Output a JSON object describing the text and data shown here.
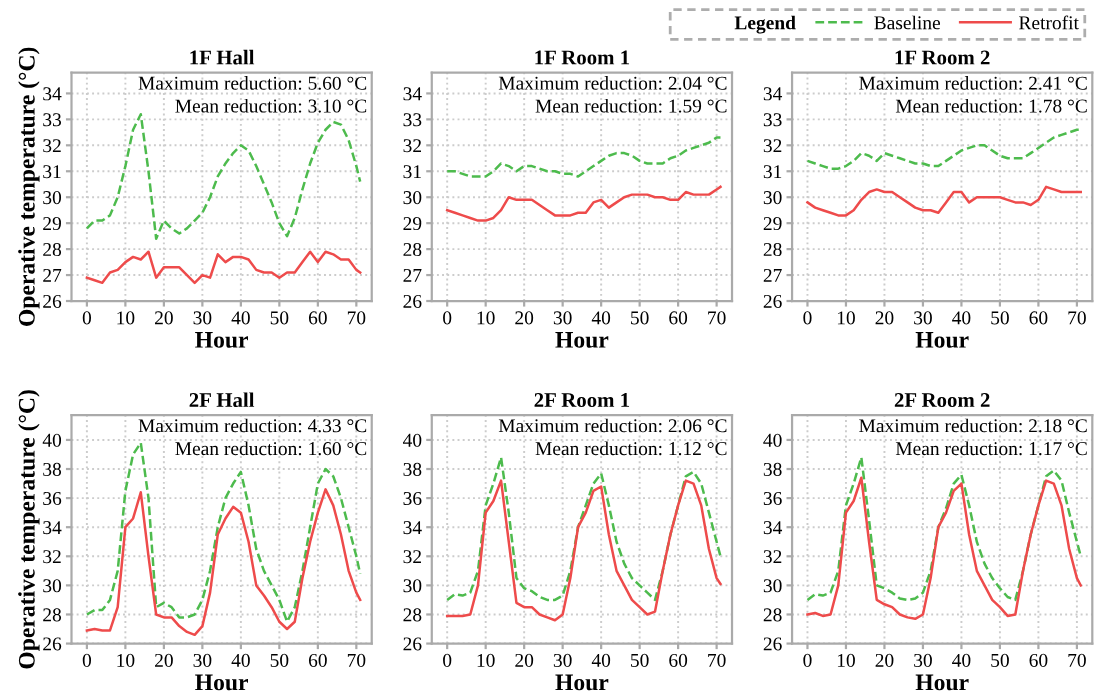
{
  "chart_data": [
    {
      "type": "line",
      "title": "1F Hall",
      "xlabel": "Hour",
      "ylabel": "Operative temperature (°C)",
      "annotations": [
        "Maximum reduction: 5.60 °C",
        "Mean reduction: 3.10 °C"
      ],
      "x": [
        0,
        2,
        4,
        6,
        8,
        10,
        12,
        14,
        16,
        18,
        20,
        22,
        24,
        26,
        28,
        30,
        32,
        34,
        36,
        38,
        40,
        42,
        44,
        46,
        48,
        50,
        52,
        54,
        56,
        58,
        60,
        62,
        64,
        66,
        68,
        70,
        71
      ],
      "xlim": [
        -4,
        74
      ],
      "xticks": [
        0,
        10,
        20,
        30,
        40,
        50,
        60,
        70
      ],
      "ylim": [
        26,
        34.8
      ],
      "yticks": [
        26,
        27,
        28,
        29,
        30,
        31,
        32,
        33,
        34
      ],
      "grid": true,
      "legend": "top right",
      "legend_title": "Legend",
      "series": [
        {
          "name": "Baseline",
          "color": "#4dbb4d",
          "line_style": "dashed",
          "values": [
            28.8,
            29.1,
            29.1,
            29.3,
            30.0,
            31.2,
            32.6,
            33.2,
            31.0,
            28.4,
            29.1,
            28.8,
            28.6,
            28.8,
            29.1,
            29.4,
            30.0,
            30.8,
            31.3,
            31.7,
            32.0,
            31.8,
            31.2,
            30.5,
            29.8,
            29.0,
            28.5,
            29.2,
            30.3,
            31.3,
            32.1,
            32.6,
            32.9,
            32.8,
            32.2,
            31.2,
            30.6
          ]
        },
        {
          "name": "Retrofit",
          "color": "#ee4b4b",
          "line_style": "solid",
          "values": [
            26.9,
            26.8,
            26.7,
            27.1,
            27.2,
            27.5,
            27.7,
            27.6,
            27.9,
            26.9,
            27.3,
            27.3,
            27.3,
            27.0,
            26.7,
            27.0,
            26.9,
            27.8,
            27.5,
            27.7,
            27.7,
            27.6,
            27.2,
            27.1,
            27.1,
            26.9,
            27.1,
            27.1,
            27.5,
            27.9,
            27.5,
            27.9,
            27.8,
            27.6,
            27.6,
            27.2,
            27.1
          ]
        }
      ]
    },
    {
      "type": "line",
      "title": "1F Room 1",
      "xlabel": "Hour",
      "annotations": [
        "Maximum reduction: 2.04 °C",
        "Mean reduction: 1.59 °C"
      ],
      "x": [
        0,
        2,
        4,
        6,
        8,
        10,
        12,
        14,
        16,
        18,
        20,
        22,
        24,
        26,
        28,
        30,
        32,
        34,
        36,
        38,
        40,
        42,
        44,
        46,
        48,
        50,
        52,
        54,
        56,
        58,
        60,
        62,
        64,
        66,
        68,
        70,
        71
      ],
      "xlim": [
        -4,
        74
      ],
      "xticks": [
        0,
        10,
        20,
        30,
        40,
        50,
        60,
        70
      ],
      "ylim": [
        26,
        34.8
      ],
      "yticks": [
        26,
        27,
        28,
        29,
        30,
        31,
        32,
        33,
        34
      ],
      "grid": true,
      "legend": false,
      "series": [
        {
          "name": "Baseline",
          "color": "#4dbb4d",
          "line_style": "dashed",
          "values": [
            31.0,
            31.0,
            30.9,
            30.8,
            30.8,
            30.8,
            31.0,
            31.3,
            31.2,
            31.0,
            31.2,
            31.2,
            31.1,
            31.0,
            31.0,
            30.9,
            30.9,
            30.8,
            31.0,
            31.2,
            31.4,
            31.6,
            31.7,
            31.7,
            31.6,
            31.4,
            31.3,
            31.3,
            31.3,
            31.5,
            31.6,
            31.8,
            31.9,
            32.0,
            32.1,
            32.3,
            32.3
          ]
        },
        {
          "name": "Retrofit",
          "color": "#ee4b4b",
          "line_style": "solid",
          "values": [
            29.5,
            29.4,
            29.3,
            29.2,
            29.1,
            29.1,
            29.2,
            29.5,
            30.0,
            29.9,
            29.9,
            29.9,
            29.7,
            29.5,
            29.3,
            29.3,
            29.3,
            29.4,
            29.4,
            29.8,
            29.9,
            29.6,
            29.8,
            30.0,
            30.1,
            30.1,
            30.1,
            30.0,
            30.0,
            29.9,
            29.9,
            30.2,
            30.1,
            30.1,
            30.1,
            30.3,
            30.4
          ]
        }
      ]
    },
    {
      "type": "line",
      "title": "1F Room 2",
      "xlabel": "Hour",
      "annotations": [
        "Maximum reduction: 2.41 °C",
        "Mean reduction: 1.78 °C"
      ],
      "x": [
        0,
        2,
        4,
        6,
        8,
        10,
        12,
        14,
        16,
        18,
        20,
        22,
        24,
        26,
        28,
        30,
        32,
        34,
        36,
        38,
        40,
        42,
        44,
        46,
        48,
        50,
        52,
        54,
        56,
        58,
        60,
        62,
        64,
        66,
        68,
        70,
        71
      ],
      "xlim": [
        -4,
        74
      ],
      "xticks": [
        0,
        10,
        20,
        30,
        40,
        50,
        60,
        70
      ],
      "ylim": [
        26,
        34.8
      ],
      "yticks": [
        26,
        27,
        28,
        29,
        30,
        31,
        32,
        33,
        34
      ],
      "grid": true,
      "legend": false,
      "series": [
        {
          "name": "Baseline",
          "color": "#4dbb4d",
          "line_style": "dashed",
          "values": [
            31.4,
            31.3,
            31.2,
            31.1,
            31.1,
            31.2,
            31.4,
            31.7,
            31.6,
            31.4,
            31.7,
            31.6,
            31.5,
            31.4,
            31.3,
            31.3,
            31.2,
            31.2,
            31.4,
            31.6,
            31.8,
            31.9,
            32.0,
            32.0,
            31.8,
            31.6,
            31.5,
            31.5,
            31.5,
            31.7,
            31.9,
            32.1,
            32.3,
            32.4,
            32.5,
            32.6,
            32.6
          ]
        },
        {
          "name": "Retrofit",
          "color": "#ee4b4b",
          "line_style": "solid",
          "values": [
            29.8,
            29.6,
            29.5,
            29.4,
            29.3,
            29.3,
            29.5,
            29.9,
            30.2,
            30.3,
            30.2,
            30.2,
            30.0,
            29.8,
            29.6,
            29.5,
            29.5,
            29.4,
            29.8,
            30.2,
            30.2,
            29.8,
            30.0,
            30.0,
            30.0,
            30.0,
            29.9,
            29.8,
            29.8,
            29.7,
            29.9,
            30.4,
            30.3,
            30.2,
            30.2,
            30.2,
            30.2
          ]
        }
      ]
    },
    {
      "type": "line",
      "title": "2F Hall",
      "xlabel": "Hour",
      "ylabel": "Operative temperature (°C)",
      "annotations": [
        "Maximum reduction: 4.33 °C",
        "Mean reduction: 1.60 °C"
      ],
      "x": [
        0,
        2,
        4,
        6,
        8,
        10,
        12,
        14,
        16,
        18,
        20,
        22,
        24,
        26,
        28,
        30,
        32,
        34,
        36,
        38,
        40,
        42,
        44,
        46,
        48,
        50,
        52,
        54,
        56,
        58,
        60,
        62,
        64,
        66,
        68,
        70,
        71
      ],
      "xlim": [
        -4,
        74
      ],
      "xticks": [
        0,
        10,
        20,
        30,
        40,
        50,
        60,
        70
      ],
      "ylim": [
        26,
        41.7
      ],
      "yticks": [
        26,
        28,
        30,
        32,
        34,
        36,
        38,
        40
      ],
      "grid": true,
      "legend": false,
      "series": [
        {
          "name": "Baseline",
          "color": "#4dbb4d",
          "line_style": "dashed",
          "values": [
            28.0,
            28.3,
            28.3,
            29.0,
            31.0,
            36.5,
            39.0,
            39.8,
            36.0,
            28.5,
            28.8,
            28.5,
            27.8,
            27.8,
            28.0,
            29.0,
            31.0,
            34.0,
            36.0,
            37.0,
            37.8,
            35.5,
            32.5,
            31.0,
            30.0,
            29.0,
            27.5,
            28.5,
            31.0,
            34.0,
            37.0,
            38.0,
            37.5,
            36.0,
            34.0,
            32.0,
            30.8
          ]
        },
        {
          "name": "Retrofit",
          "color": "#ee4b4b",
          "line_style": "solid",
          "values": [
            26.9,
            27.0,
            26.9,
            26.9,
            28.5,
            34.0,
            34.6,
            36.4,
            32.0,
            28.0,
            27.8,
            27.8,
            27.2,
            26.8,
            26.6,
            27.2,
            29.5,
            33.5,
            34.6,
            35.4,
            35.0,
            33.0,
            30.0,
            29.3,
            28.5,
            27.5,
            27.0,
            27.5,
            30.5,
            33.0,
            35.0,
            36.6,
            35.5,
            33.5,
            31.0,
            29.5,
            29.0
          ]
        }
      ]
    },
    {
      "type": "line",
      "title": "2F Room 1",
      "xlabel": "Hour",
      "annotations": [
        "Maximum reduction: 2.06 °C",
        "Mean reduction: 1.12 °C"
      ],
      "x": [
        0,
        2,
        4,
        6,
        8,
        10,
        12,
        14,
        16,
        18,
        20,
        22,
        24,
        26,
        28,
        30,
        32,
        34,
        36,
        38,
        40,
        42,
        44,
        46,
        48,
        50,
        52,
        54,
        56,
        58,
        60,
        62,
        64,
        66,
        68,
        70,
        71
      ],
      "xlim": [
        -4,
        74
      ],
      "xticks": [
        0,
        10,
        20,
        30,
        40,
        50,
        60,
        70
      ],
      "ylim": [
        26,
        41.7
      ],
      "yticks": [
        26,
        28,
        30,
        32,
        34,
        36,
        38,
        40
      ],
      "grid": true,
      "legend": false,
      "series": [
        {
          "name": "Baseline",
          "color": "#4dbb4d",
          "line_style": "dashed",
          "values": [
            29.0,
            29.4,
            29.3,
            29.5,
            31.0,
            35.5,
            37.0,
            38.8,
            35.0,
            30.5,
            29.8,
            29.6,
            29.2,
            29.0,
            29.0,
            29.3,
            31.0,
            34.0,
            35.5,
            37.0,
            37.7,
            35.5,
            33.0,
            31.5,
            30.5,
            30.0,
            29.5,
            29.0,
            31.0,
            33.5,
            35.5,
            37.5,
            37.8,
            37.0,
            35.0,
            33.0,
            32.0
          ]
        },
        {
          "name": "Retrofit",
          "color": "#ee4b4b",
          "line_style": "solid",
          "values": [
            27.9,
            27.9,
            27.9,
            28.0,
            30.0,
            35.0,
            35.8,
            37.2,
            33.0,
            28.8,
            28.5,
            28.5,
            28.0,
            27.8,
            27.6,
            28.0,
            30.5,
            34.0,
            35.0,
            36.5,
            36.8,
            33.5,
            31.0,
            30.0,
            29.0,
            28.5,
            28.0,
            28.2,
            31.0,
            33.5,
            35.5,
            37.2,
            37.0,
            35.5,
            32.5,
            30.5,
            30.1
          ]
        }
      ]
    },
    {
      "type": "line",
      "title": "2F Room 2",
      "xlabel": "Hour",
      "annotations": [
        "Maximum reduction: 2.18 °C",
        "Mean reduction: 1.17 °C"
      ],
      "x": [
        0,
        2,
        4,
        6,
        8,
        10,
        12,
        14,
        16,
        18,
        20,
        22,
        24,
        26,
        28,
        30,
        32,
        34,
        36,
        38,
        40,
        42,
        44,
        46,
        48,
        50,
        52,
        54,
        56,
        58,
        60,
        62,
        64,
        66,
        68,
        70,
        71
      ],
      "xlim": [
        -4,
        74
      ],
      "xticks": [
        0,
        10,
        20,
        30,
        40,
        50,
        60,
        70
      ],
      "ylim": [
        26,
        41.7
      ],
      "yticks": [
        26,
        28,
        30,
        32,
        34,
        36,
        38,
        40
      ],
      "grid": true,
      "legend": false,
      "series": [
        {
          "name": "Baseline",
          "color": "#4dbb4d",
          "line_style": "dashed",
          "values": [
            29.0,
            29.4,
            29.3,
            29.5,
            31.0,
            35.5,
            37.0,
            38.8,
            34.5,
            30.0,
            29.8,
            29.5,
            29.1,
            29.0,
            29.1,
            29.5,
            31.0,
            34.0,
            35.3,
            37.0,
            37.6,
            35.5,
            33.0,
            31.5,
            30.5,
            29.8,
            29.2,
            29.0,
            31.0,
            33.5,
            35.5,
            37.5,
            37.9,
            37.2,
            35.0,
            33.0,
            32.0
          ]
        },
        {
          "name": "Retrofit",
          "color": "#ee4b4b",
          "line_style": "solid",
          "values": [
            28.0,
            28.1,
            27.9,
            28.0,
            30.0,
            35.0,
            35.8,
            37.4,
            33.0,
            29.0,
            28.7,
            28.5,
            28.0,
            27.8,
            27.7,
            28.0,
            30.5,
            34.0,
            35.0,
            36.5,
            37.0,
            33.5,
            31.0,
            30.0,
            29.0,
            28.5,
            27.9,
            28.0,
            31.0,
            33.5,
            35.5,
            37.2,
            37.0,
            35.5,
            32.5,
            30.5,
            30.0
          ]
        }
      ]
    }
  ]
}
